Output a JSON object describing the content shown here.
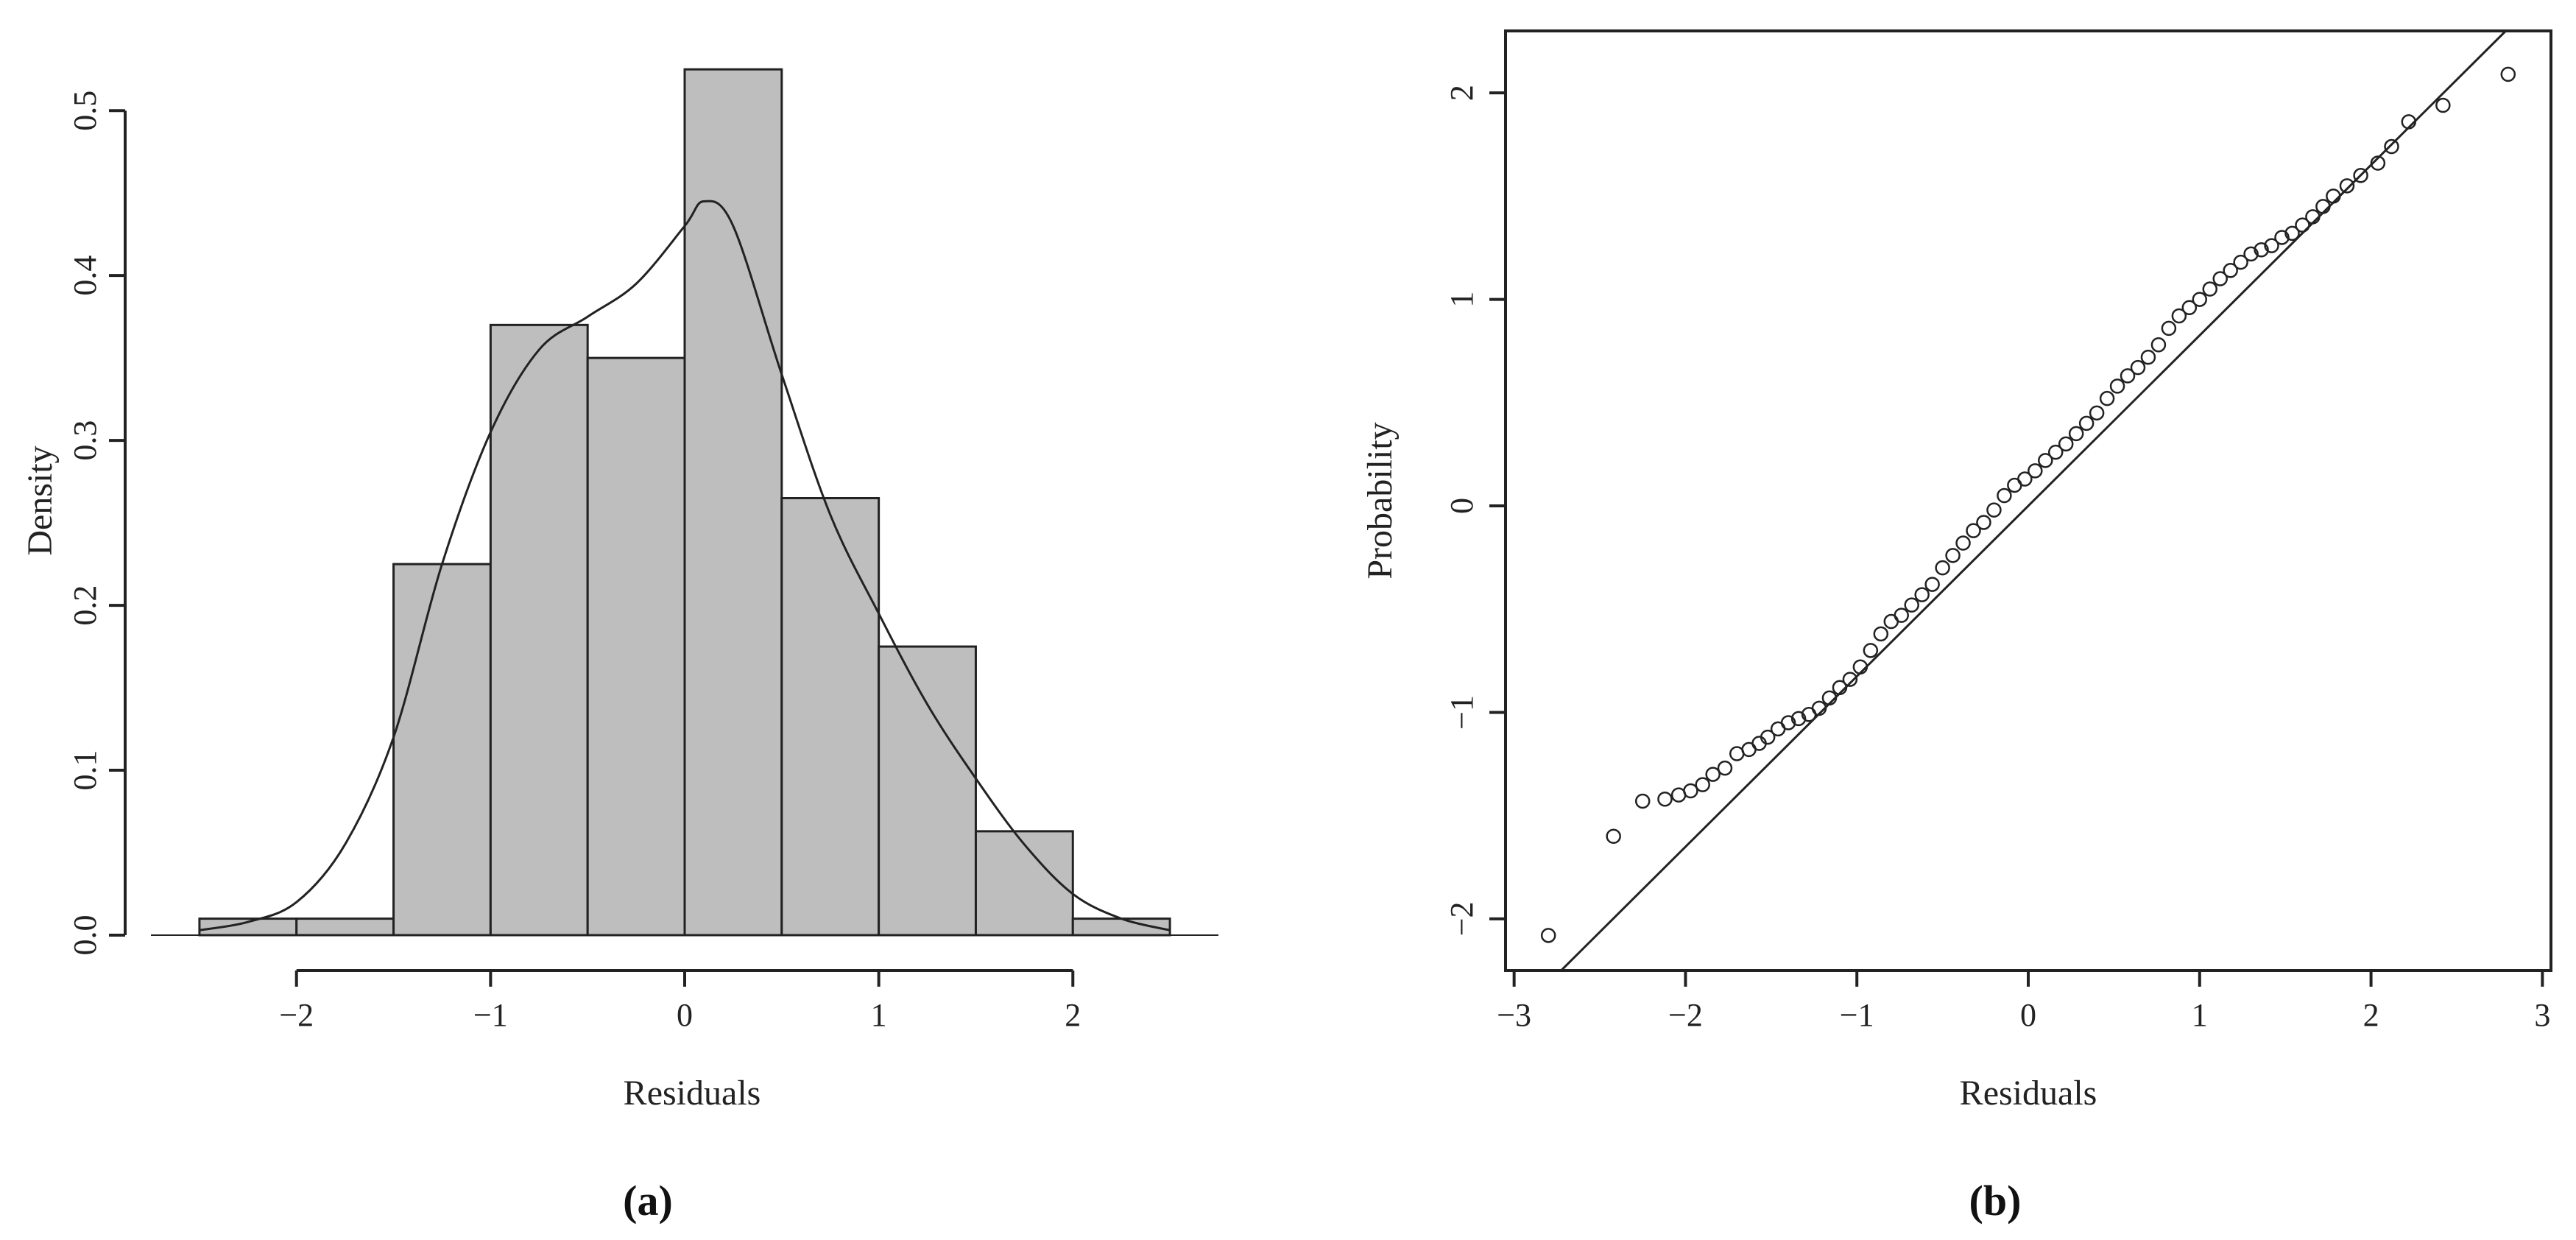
{
  "chart_data": [
    {
      "type": "bar",
      "panel_label": "(a)",
      "xlabel": "Residuals",
      "ylabel": "Density",
      "xlim": [
        -2.75,
        2.75
      ],
      "ylim": [
        0,
        0.53
      ],
      "xticks": [
        "-2",
        "-1",
        "0",
        "1",
        "2"
      ],
      "yticks": [
        "0.0",
        "0.1",
        "0.2",
        "0.3",
        "0.4",
        "0.5"
      ],
      "bins": [
        {
          "from": -2.5,
          "to": -2.0,
          "density": 0.01
        },
        {
          "from": -2.0,
          "to": -1.5,
          "density": 0.01
        },
        {
          "from": -1.5,
          "to": -1.0,
          "density": 0.225
        },
        {
          "from": -1.0,
          "to": -0.5,
          "density": 0.37
        },
        {
          "from": -0.5,
          "to": 0.0,
          "density": 0.35
        },
        {
          "from": 0.0,
          "to": 0.5,
          "density": 0.525
        },
        {
          "from": 0.5,
          "to": 1.0,
          "density": 0.265
        },
        {
          "from": 1.0,
          "to": 1.5,
          "density": 0.175
        },
        {
          "from": 1.5,
          "to": 2.0,
          "density": 0.063
        },
        {
          "from": 2.0,
          "to": 2.5,
          "density": 0.01
        }
      ],
      "density_curve": {
        "x": [
          -2.5,
          -2.25,
          -2.0,
          -1.75,
          -1.5,
          -1.25,
          -1.0,
          -0.75,
          -0.5,
          -0.25,
          0.0,
          0.1,
          0.25,
          0.5,
          0.75,
          1.0,
          1.25,
          1.5,
          1.75,
          2.0,
          2.25,
          2.5
        ],
        "y": [
          0.003,
          0.008,
          0.02,
          0.055,
          0.12,
          0.225,
          0.305,
          0.355,
          0.375,
          0.395,
          0.43,
          0.445,
          0.43,
          0.34,
          0.255,
          0.195,
          0.14,
          0.095,
          0.055,
          0.025,
          0.01,
          0.003
        ]
      },
      "colors": {
        "bar_fill": "#bebebe",
        "bar_edge": "#222222",
        "curve": "#222222"
      }
    },
    {
      "type": "scatter",
      "panel_label": "(b)",
      "xlabel": "Residuals",
      "ylabel": "Probability",
      "xlim": [
        -3.05,
        3.05
      ],
      "ylim": [
        -2.25,
        2.3
      ],
      "xticks": [
        "-3",
        "-2",
        "-1",
        "0",
        "1",
        "2",
        "3"
      ],
      "yticks": [
        "-2",
        "-1",
        "0",
        "1",
        "2"
      ],
      "reference_line": {
        "x": [
          -2.75,
          2.75
        ],
        "y": [
          -2.27,
          2.27
        ]
      },
      "points": {
        "x": [
          -2.8,
          -2.42,
          -2.25,
          -2.12,
          -2.04,
          -1.97,
          -1.9,
          -1.84,
          -1.77,
          -1.7,
          -1.63,
          -1.57,
          -1.52,
          -1.46,
          -1.4,
          -1.34,
          -1.28,
          -1.22,
          -1.16,
          -1.1,
          -1.04,
          -0.98,
          -0.92,
          -0.86,
          -0.8,
          -0.74,
          -0.68,
          -0.62,
          -0.56,
          -0.5,
          -0.44,
          -0.38,
          -0.32,
          -0.26,
          -0.2,
          -0.14,
          -0.08,
          -0.02,
          0.04,
          0.1,
          0.16,
          0.22,
          0.28,
          0.34,
          0.4,
          0.46,
          0.52,
          0.58,
          0.64,
          0.7,
          0.76,
          0.82,
          0.88,
          0.94,
          1.0,
          1.06,
          1.12,
          1.18,
          1.24,
          1.3,
          1.36,
          1.42,
          1.48,
          1.54,
          1.6,
          1.66,
          1.72,
          1.78,
          1.86,
          1.94,
          2.04,
          2.12,
          2.22,
          2.42,
          2.8
        ],
        "y": [
          -2.08,
          -1.6,
          -1.43,
          -1.42,
          -1.4,
          -1.38,
          -1.35,
          -1.3,
          -1.27,
          -1.2,
          -1.18,
          -1.15,
          -1.12,
          -1.08,
          -1.05,
          -1.03,
          -1.01,
          -0.98,
          -0.93,
          -0.88,
          -0.84,
          -0.78,
          -0.7,
          -0.62,
          -0.56,
          -0.53,
          -0.48,
          -0.43,
          -0.38,
          -0.3,
          -0.24,
          -0.18,
          -0.12,
          -0.08,
          -0.02,
          0.05,
          0.1,
          0.13,
          0.17,
          0.22,
          0.26,
          0.3,
          0.35,
          0.4,
          0.45,
          0.52,
          0.58,
          0.63,
          0.67,
          0.72,
          0.78,
          0.86,
          0.92,
          0.96,
          1.0,
          1.05,
          1.1,
          1.14,
          1.18,
          1.22,
          1.24,
          1.26,
          1.3,
          1.32,
          1.36,
          1.4,
          1.45,
          1.5,
          1.55,
          1.6,
          1.66,
          1.74,
          1.86,
          1.94,
          2.09
        ]
      },
      "colors": {
        "marker": "#222222",
        "line": "#222222"
      }
    }
  ]
}
